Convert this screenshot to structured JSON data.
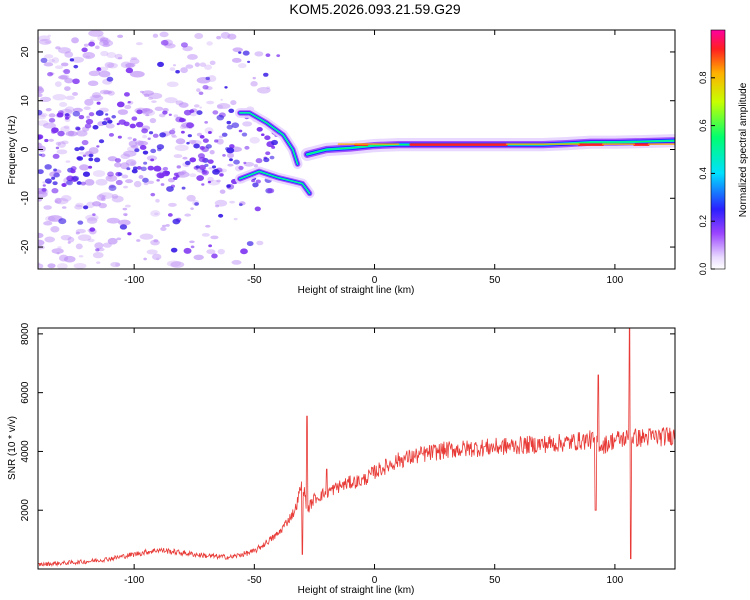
{
  "title": "KOM5.2026.093.21.59.G29",
  "colors": {
    "signal": "#e83a36",
    "axis": "#000000",
    "scatter": "#7a2cf0",
    "background": "#ffffff"
  },
  "chart_data": [
    {
      "type": "heatmap",
      "xlabel": "Height of straight line (km)",
      "ylabel": "Frequency (Hz)",
      "xlim": [
        -140,
        125
      ],
      "ylim": [
        -24.5,
        24.5
      ],
      "xticks": [
        -100,
        -50,
        0,
        50,
        100
      ],
      "yticks": [
        -20,
        -10,
        0,
        10,
        20
      ],
      "colorbar": {
        "label": "Normalized spectral amplitude",
        "range": [
          0,
          1
        ],
        "ticks": [
          "0.0",
          "0.2",
          "0.4",
          "0.6",
          "0.8"
        ]
      },
      "features": [
        {
          "name": "doppler-trace",
          "x": [
            -28,
            -20,
            -10,
            0,
            10,
            20,
            30,
            40,
            50,
            60,
            70,
            80,
            90,
            100,
            110,
            125
          ],
          "y": [
            -1,
            0,
            0.3,
            0.8,
            1,
            1,
            1,
            1,
            1,
            1,
            1,
            1.2,
            1.5,
            1.5,
            1.6,
            1.8
          ]
        },
        {
          "name": "upper-arc",
          "x": [
            -56,
            -52,
            -45,
            -38,
            -34,
            -32
          ],
          "y": [
            7.5,
            7.5,
            5.5,
            3,
            0,
            -3
          ]
        },
        {
          "name": "lower-arc",
          "x": [
            -56,
            -48,
            -40,
            -34,
            -30,
            -27
          ],
          "y": [
            -6,
            -4.5,
            -5.8,
            -6.5,
            -7,
            -9
          ]
        }
      ]
    },
    {
      "type": "line",
      "xlabel": "Height of straight line (km)",
      "ylabel": "SNR (10 * v/v)",
      "xlim": [
        -140,
        125
      ],
      "ylim": [
        0,
        8200
      ],
      "xticks": [
        -100,
        -50,
        0,
        50,
        100
      ],
      "yticks": [
        2000,
        4000,
        6000,
        8000
      ],
      "series": [
        {
          "name": "SNR",
          "x": [
            -140,
            -120,
            -110,
            -100,
            -90,
            -80,
            -70,
            -60,
            -50,
            -40,
            -33,
            -30,
            -28,
            -25,
            -20,
            -15,
            -10,
            -5,
            0,
            10,
            20,
            30,
            40,
            50,
            60,
            70,
            80,
            85,
            90,
            93,
            95,
            100,
            105,
            107,
            110,
            115,
            120,
            125
          ],
          "y": [
            150,
            250,
            350,
            500,
            650,
            550,
            450,
            400,
            600,
            1200,
            2000,
            3000,
            2000,
            2400,
            2600,
            2800,
            2950,
            3000,
            3300,
            3700,
            3900,
            4050,
            4100,
            4150,
            4200,
            4250,
            4300,
            4350,
            4400,
            4300,
            4200,
            4400,
            4450,
            4500,
            4450,
            4500,
            4500,
            4550
          ]
        }
      ],
      "spikes": [
        {
          "x": -28,
          "y": 5200
        },
        {
          "x": -30,
          "y": 500
        },
        {
          "x": -20,
          "y": 3400
        },
        {
          "x": 92,
          "y": 2000
        },
        {
          "x": 93,
          "y": 6600
        },
        {
          "x": 106,
          "y": 8200
        },
        {
          "x": 106.5,
          "y": 350
        }
      ]
    }
  ]
}
